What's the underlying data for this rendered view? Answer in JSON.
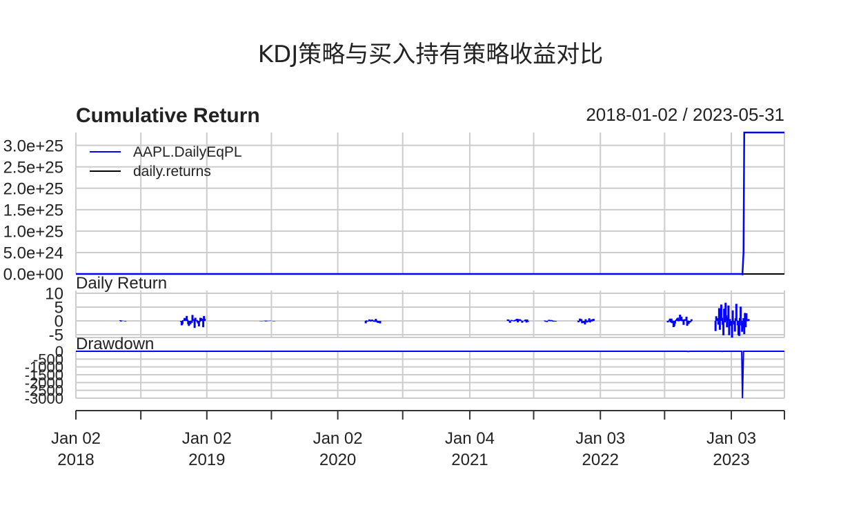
{
  "title": "KDJ策略与买入持有策略收益对比",
  "panel_title": "Cumulative Return",
  "date_range": "2018-01-02 / 2023-05-31",
  "colors": {
    "eq": "#0000ff",
    "ret": "#000000",
    "grid": "#cccccc",
    "axis": "#333333"
  },
  "chart_data": [
    {
      "type": "line",
      "panel": "Cumulative Return",
      "ylim": [
        0,
        3.3e+25
      ],
      "yticks": [
        "0.0e+00",
        "5.0e+24",
        "1.0e+25",
        "1.5e+25",
        "2.0e+25",
        "2.5e+25",
        "3.0e+25"
      ],
      "ytick_values": [
        0,
        5e+24,
        1e+25,
        1.5e+25,
        2e+25,
        2.5e+25,
        3e+25
      ],
      "legend": "top-left",
      "grid": true,
      "series": [
        {
          "name": "AAPL.DailyEqPL",
          "color": "#0000ff",
          "points": [
            [
              "2018-01-02",
              0
            ],
            [
              "2023-01-31",
              0
            ],
            [
              "2023-02-03",
              -1e+23
            ],
            [
              "2023-02-06",
              5e+24
            ],
            [
              "2023-02-08",
              3.3e+25
            ],
            [
              "2023-05-31",
              3.3e+25
            ]
          ]
        },
        {
          "name": "daily.returns",
          "color": "#000000",
          "points": [
            [
              "2018-01-02",
              0
            ],
            [
              "2023-05-31",
              0
            ]
          ]
        }
      ]
    },
    {
      "type": "bar",
      "panel": "Daily Return",
      "ylim": [
        -6,
        11
      ],
      "yticks": [
        "10",
        "5",
        "0",
        "-5"
      ],
      "ytick_values": [
        10,
        5,
        0,
        -5
      ],
      "grid": true,
      "clusters": [
        {
          "start": "2018-05-04",
          "end": "2018-05-20",
          "amp": 0.3,
          "seed": 1
        },
        {
          "start": "2018-10-22",
          "end": "2018-12-28",
          "amp": 3.0,
          "seed": 2
        },
        {
          "start": "2019-06-01",
          "end": "2019-07-10",
          "amp": 0.2,
          "seed": 3
        },
        {
          "start": "2020-03-20",
          "end": "2020-04-30",
          "amp": 1.2,
          "seed": 4
        },
        {
          "start": "2021-04-20",
          "end": "2021-06-15",
          "amp": 1.0,
          "seed": 5
        },
        {
          "start": "2021-08-01",
          "end": "2021-09-01",
          "amp": 0.5,
          "seed": 6
        },
        {
          "start": "2021-11-01",
          "end": "2021-12-15",
          "amp": 1.5,
          "seed": 7
        },
        {
          "start": "2022-07-10",
          "end": "2022-09-15",
          "amp": 2.8,
          "seed": 8
        },
        {
          "start": "2022-11-20",
          "end": "2023-02-20",
          "amp": 8.5,
          "seed": 9
        }
      ]
    },
    {
      "type": "line",
      "panel": "Drawdown",
      "ylim": [
        -3000,
        0
      ],
      "yticks": [
        "0",
        "-500",
        "-1000",
        "-1500",
        "-2000",
        "-2500",
        "-3000"
      ],
      "ytick_values": [
        0,
        -500,
        -1000,
        -1500,
        -2000,
        -2500,
        -3000
      ],
      "grid": true,
      "series": [
        {
          "name": "Drawdown",
          "color": "#0000ff",
          "points": [
            [
              "2018-01-02",
              0
            ],
            [
              "2022-08-31",
              0
            ],
            [
              "2022-09-05",
              -15
            ],
            [
              "2022-09-10",
              0
            ],
            [
              "2022-12-05",
              0
            ],
            [
              "2022-12-08",
              -10
            ],
            [
              "2022-12-11",
              0
            ],
            [
              "2023-02-01",
              0
            ],
            [
              "2023-02-03",
              -3000
            ],
            [
              "2023-02-06",
              0
            ],
            [
              "2023-05-31",
              0
            ]
          ]
        }
      ]
    }
  ],
  "x_axis": {
    "range": [
      "2018-01-02",
      "2023-05-31"
    ],
    "labeled_ticks": [
      {
        "date": "2018-01-02",
        "line1": "Jan 02",
        "line2": "2018"
      },
      {
        "date": "2019-01-02",
        "line1": "Jan 02",
        "line2": "2019"
      },
      {
        "date": "2020-01-02",
        "line1": "Jan 02",
        "line2": "2020"
      },
      {
        "date": "2021-01-04",
        "line1": "Jan 04",
        "line2": "2021"
      },
      {
        "date": "2022-01-03",
        "line1": "Jan 03",
        "line2": "2022"
      },
      {
        "date": "2023-01-03",
        "line1": "Jan 03",
        "line2": "2023"
      }
    ],
    "minor_ticks": [
      "2018-07-02",
      "2019-07-01",
      "2020-07-01",
      "2021-07-01",
      "2022-07-01",
      "2023-05-31"
    ]
  }
}
